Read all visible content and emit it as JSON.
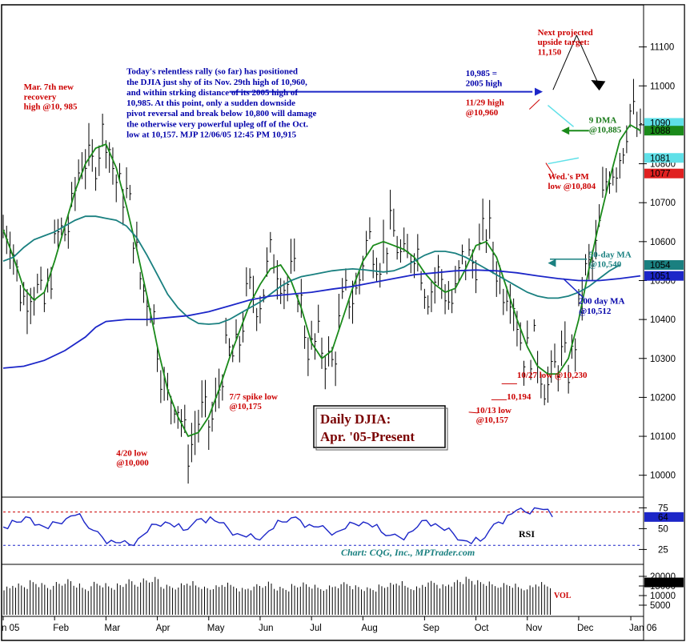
{
  "chart_data": [
    {
      "type": "line",
      "panel": "price",
      "title": "Daily DJIA:",
      "subtitle": "Apr. '05-Present",
      "ylim": [
        9950,
        11200
      ],
      "y_ticks": [
        "11100",
        "11000",
        "10900",
        "10800",
        "10700",
        "10600",
        "10500",
        "10400",
        "10300",
        "10200",
        "10100",
        "10000"
      ],
      "y_tick_values": [
        11100,
        11000,
        10900,
        10800,
        10700,
        10600,
        10500,
        10400,
        10300,
        10200,
        10100,
        10000
      ],
      "price_tags": [
        {
          "label": "1090",
          "value": 10905,
          "color": "#5fe0e8"
        },
        {
          "label": "1088",
          "value": 10885,
          "color": "#1a8a1a"
        },
        {
          "label": "1081",
          "value": 10815,
          "color": "#5fe0e8"
        },
        {
          "label": "1077",
          "value": 10775,
          "color": "#e02020"
        },
        {
          "label": "1054",
          "value": 10540,
          "color": "#1a8080"
        },
        {
          "label": "1051",
          "value": 10512,
          "color": "#1c26c8"
        }
      ],
      "series": [
        {
          "name": "9 DMA",
          "color": "#1a8a1a",
          "points": [
            [
              0,
              10630
            ],
            [
              1,
              10560
            ],
            [
              2,
              10480
            ],
            [
              3,
              10450
            ],
            [
              4,
              10470
            ],
            [
              5,
              10550
            ],
            [
              6,
              10640
            ],
            [
              7,
              10730
            ],
            [
              8,
              10800
            ],
            [
              9,
              10840
            ],
            [
              10,
              10850
            ],
            [
              11,
              10790
            ],
            [
              12,
              10690
            ],
            [
              13,
              10580
            ],
            [
              14,
              10460
            ],
            [
              15,
              10330
            ],
            [
              16,
              10220
            ],
            [
              17,
              10150
            ],
            [
              18,
              10100
            ],
            [
              19,
              10110
            ],
            [
              20,
              10150
            ],
            [
              21,
              10220
            ],
            [
              22,
              10300
            ],
            [
              23,
              10370
            ],
            [
              24,
              10440
            ],
            [
              25,
              10490
            ],
            [
              26,
              10530
            ],
            [
              27,
              10540
            ],
            [
              28,
              10500
            ],
            [
              29,
              10430
            ],
            [
              30,
              10340
            ],
            [
              31,
              10300
            ],
            [
              32,
              10320
            ],
            [
              33,
              10400
            ],
            [
              34,
              10480
            ],
            [
              35,
              10550
            ],
            [
              36,
              10590
            ],
            [
              37,
              10600
            ],
            [
              38,
              10590
            ],
            [
              39,
              10580
            ],
            [
              40,
              10560
            ],
            [
              41,
              10520
            ],
            [
              42,
              10490
            ],
            [
              43,
              10470
            ],
            [
              44,
              10480
            ],
            [
              45,
              10530
            ],
            [
              46,
              10590
            ],
            [
              47,
              10600
            ],
            [
              48,
              10560
            ],
            [
              49,
              10480
            ],
            [
              50,
              10400
            ],
            [
              51,
              10330
            ],
            [
              52,
              10280
            ],
            [
              53,
              10260
            ],
            [
              54,
              10260
            ],
            [
              55,
              10300
            ],
            [
              56,
              10400
            ],
            [
              57,
              10530
            ],
            [
              58,
              10650
            ],
            [
              59,
              10760
            ],
            [
              60,
              10860
            ],
            [
              61,
              10900
            ],
            [
              62,
              10885
            ]
          ]
        },
        {
          "name": "50-day MA",
          "color": "#1a8080",
          "points": [
            [
              0,
              10550
            ],
            [
              1,
              10560
            ],
            [
              2,
              10585
            ],
            [
              3,
              10605
            ],
            [
              4,
              10615
            ],
            [
              5,
              10625
            ],
            [
              6,
              10640
            ],
            [
              7,
              10655
            ],
            [
              8,
              10665
            ],
            [
              9,
              10665
            ],
            [
              10,
              10660
            ],
            [
              11,
              10655
            ],
            [
              12,
              10640
            ],
            [
              13,
              10610
            ],
            [
              14,
              10565
            ],
            [
              15,
              10515
            ],
            [
              16,
              10465
            ],
            [
              17,
              10430
            ],
            [
              18,
              10405
            ],
            [
              19,
              10390
            ],
            [
              20,
              10388
            ],
            [
              21,
              10390
            ],
            [
              22,
              10400
            ],
            [
              23,
              10415
            ],
            [
              24,
              10430
            ],
            [
              25,
              10445
            ],
            [
              26,
              10465
            ],
            [
              27,
              10485
            ],
            [
              28,
              10500
            ],
            [
              29,
              10510
            ],
            [
              30,
              10515
            ],
            [
              31,
              10520
            ],
            [
              32,
              10525
            ],
            [
              33,
              10528
            ],
            [
              34,
              10530
            ],
            [
              35,
              10528
            ],
            [
              36,
              10525
            ],
            [
              37,
              10522
            ],
            [
              38,
              10525
            ],
            [
              39,
              10535
            ],
            [
              40,
              10550
            ],
            [
              41,
              10565
            ],
            [
              42,
              10575
            ],
            [
              43,
              10575
            ],
            [
              44,
              10570
            ],
            [
              45,
              10560
            ],
            [
              46,
              10545
            ],
            [
              47,
              10530
            ],
            [
              48,
              10515
            ],
            [
              49,
              10500
            ],
            [
              50,
              10485
            ],
            [
              51,
              10470
            ],
            [
              52,
              10460
            ],
            [
              53,
              10455
            ],
            [
              54,
              10455
            ],
            [
              55,
              10460
            ],
            [
              56,
              10470
            ],
            [
              57,
              10485
            ],
            [
              58,
              10505
            ],
            [
              59,
              10525
            ],
            [
              60,
              10540
            ]
          ]
        },
        {
          "name": "200 day MA",
          "color": "#1c26c8",
          "points": [
            [
              0,
              10275
            ],
            [
              2,
              10280
            ],
            [
              4,
              10295
            ],
            [
              6,
              10320
            ],
            [
              8,
              10355
            ],
            [
              9,
              10380
            ],
            [
              10,
              10395
            ],
            [
              12,
              10400
            ],
            [
              14,
              10400
            ],
            [
              16,
              10405
            ],
            [
              18,
              10410
            ],
            [
              20,
              10420
            ],
            [
              22,
              10435
            ],
            [
              24,
              10450
            ],
            [
              26,
              10460
            ],
            [
              28,
              10465
            ],
            [
              30,
              10470
            ],
            [
              32,
              10478
            ],
            [
              34,
              10485
            ],
            [
              36,
              10495
            ],
            [
              38,
              10505
            ],
            [
              40,
              10515
            ],
            [
              42,
              10520
            ],
            [
              44,
              10525
            ],
            [
              46,
              10527
            ],
            [
              48,
              10525
            ],
            [
              50,
              10520
            ],
            [
              52,
              10512
            ],
            [
              54,
              10505
            ],
            [
              56,
              10500
            ],
            [
              58,
              10500
            ],
            [
              60,
              10505
            ],
            [
              62,
              10512
            ]
          ]
        }
      ],
      "annotations": [
        {
          "text": "Mar. 7th new",
          "color": "#cc0000",
          "x": 2,
          "y": 10990
        },
        {
          "text": "recovery",
          "color": "#cc0000",
          "x": 2,
          "y": 10965
        },
        {
          "text": "high @10, 985",
          "color": "#cc0000",
          "x": 2,
          "y": 10940
        },
        {
          "text": "Today's relentless rally (so far) has positioned",
          "color": "#0000aa",
          "x": 12,
          "y": 11030
        },
        {
          "text": "the DJIA just shy of its Nov. 29th high of 10,960,",
          "color": "#0000aa",
          "x": 12,
          "y": 11003
        },
        {
          "text": "and within strking distance of its 2005 high of",
          "color": "#0000aa",
          "x": 12,
          "y": 10976
        },
        {
          "text": "10,985. At this point, only a sudden downside",
          "color": "#0000aa",
          "x": 12,
          "y": 10949
        },
        {
          "text": "pivot reversal and break below 10,800 will damage",
          "color": "#0000aa",
          "x": 12,
          "y": 10922
        },
        {
          "text": "the otherwise very powerful upleg off of the Oct.",
          "color": "#0000aa",
          "x": 12,
          "y": 10895
        },
        {
          "text": "low at 10,157.  MJP  12/06/05  12:45 PM  10,915",
          "color": "#0000aa",
          "x": 12,
          "y": 10868
        },
        {
          "text": "Next projected",
          "color": "#cc0000",
          "x": 52,
          "y": 11130
        },
        {
          "text": "upside target:",
          "color": "#cc0000",
          "x": 52,
          "y": 11105
        },
        {
          "text": "11,150",
          "color": "#cc0000",
          "x": 52,
          "y": 11080
        },
        {
          "text": "10,985 =",
          "color": "#0000aa",
          "x": 45,
          "y": 11025
        },
        {
          "text": "2005 high",
          "color": "#0000aa",
          "x": 45,
          "y": 11000
        },
        {
          "text": "11/29 high",
          "color": "#cc0000",
          "x": 45,
          "y": 10950
        },
        {
          "text": "@10,960",
          "color": "#cc0000",
          "x": 45,
          "y": 10925
        },
        {
          "text": "9 DMA",
          "color": "#1a7a1a",
          "x": 57,
          "y": 10905
        },
        {
          "text": "@10,885",
          "color": "#1a7a1a",
          "x": 57,
          "y": 10880
        },
        {
          "text": "Wed.'s PM",
          "color": "#cc0000",
          "x": 53,
          "y": 10760
        },
        {
          "text": "low @10,804",
          "color": "#cc0000",
          "x": 53,
          "y": 10735
        },
        {
          "text": "50-day MA",
          "color": "#1a8080",
          "x": 57,
          "y": 10560
        },
        {
          "text": "@10,540",
          "color": "#1a8080",
          "x": 57,
          "y": 10535
        },
        {
          "text": "200 day MA",
          "color": "#0000aa",
          "x": 56,
          "y": 10440
        },
        {
          "text": "@10,512",
          "color": "#0000aa",
          "x": 56,
          "y": 10415
        },
        {
          "text": "10/27 low @10,230",
          "color": "#cc0000",
          "x": 50,
          "y": 10250
        },
        {
          "text": "10,194",
          "color": "#cc0000",
          "x": 49,
          "y": 10195
        },
        {
          "text": "10/13 low",
          "color": "#cc0000",
          "x": 46,
          "y": 10160
        },
        {
          "text": "@10,157",
          "color": "#cc0000",
          "x": 46,
          "y": 10135
        },
        {
          "text": "7/7 spike low",
          "color": "#cc0000",
          "x": 22,
          "y": 10195
        },
        {
          "text": "@10,175",
          "color": "#cc0000",
          "x": 22,
          "y": 10170
        },
        {
          "text": "4/20 low",
          "color": "#cc0000",
          "x": 11,
          "y": 10050
        },
        {
          "text": "@10,000",
          "color": "#cc0000",
          "x": 11,
          "y": 10025
        }
      ]
    },
    {
      "type": "line",
      "panel": "rsi",
      "name": "RSI",
      "ylim": [
        10,
        85
      ],
      "y_ticks": [
        "75",
        "50",
        "25"
      ],
      "y_tick_values": [
        75,
        50,
        25
      ],
      "reference_lines": [
        70,
        30
      ],
      "value_tag": {
        "label": "64",
        "value": 64
      },
      "values": [
        52,
        60,
        58,
        63,
        55,
        50,
        57,
        62,
        66,
        58,
        48,
        40,
        36,
        33,
        31,
        38,
        46,
        55,
        58,
        52,
        48,
        55,
        62,
        64,
        57,
        50,
        44,
        40,
        38,
        42,
        50,
        58,
        63,
        60,
        55,
        52,
        48,
        46,
        50,
        56,
        58,
        52,
        46,
        42,
        40,
        45,
        52,
        60,
        56,
        48,
        44,
        36,
        32,
        35,
        48,
        58,
        66,
        72,
        70,
        75,
        73,
        64
      ]
    },
    {
      "type": "bar",
      "panel": "volume",
      "name": "VOL",
      "ylim": [
        0,
        25000
      ],
      "y_ticks": [
        "20000",
        "15000",
        "10000",
        "5000"
      ],
      "y_tick_values": [
        20000,
        15000,
        10000,
        5000
      ],
      "value_tag": {
        "label": "1684",
        "value": 16845
      },
      "values": [
        15500,
        17200,
        16400,
        18300,
        16800,
        15300,
        17700,
        19200,
        16900,
        14800,
        18100,
        17400,
        15900,
        16600,
        18800,
        17100,
        19600,
        20400,
        16200,
        15700,
        17300,
        18500,
        16400,
        14900,
        15600,
        17000,
        16100,
        14500,
        15200,
        16800,
        18200,
        15400,
        14800,
        16300,
        17100,
        15900,
        14600,
        15800,
        16500,
        17900,
        16200,
        15100,
        14700,
        16000,
        16900,
        17800,
        15600,
        15300,
        17400,
        18600,
        16700,
        17900,
        19500,
        20100,
        18300,
        17600,
        16400,
        17100,
        16800,
        15200,
        16100,
        18000,
        16845
      ],
      "x_ticks": [
        "n 05",
        "Feb",
        "Mar",
        "Apr",
        "May",
        "Jun",
        "Jul",
        "Aug",
        "Sep",
        "Oct",
        "Nov",
        "Dec",
        "Jan 06"
      ],
      "x_tick_positions": [
        0,
        5,
        10,
        15,
        20,
        25,
        30,
        35,
        41,
        46,
        51,
        56,
        62
      ]
    }
  ],
  "labels": {
    "credit": "Chart: CQG, Inc., MPTrader.com",
    "rsi": "RSI",
    "vol": "VOL"
  }
}
